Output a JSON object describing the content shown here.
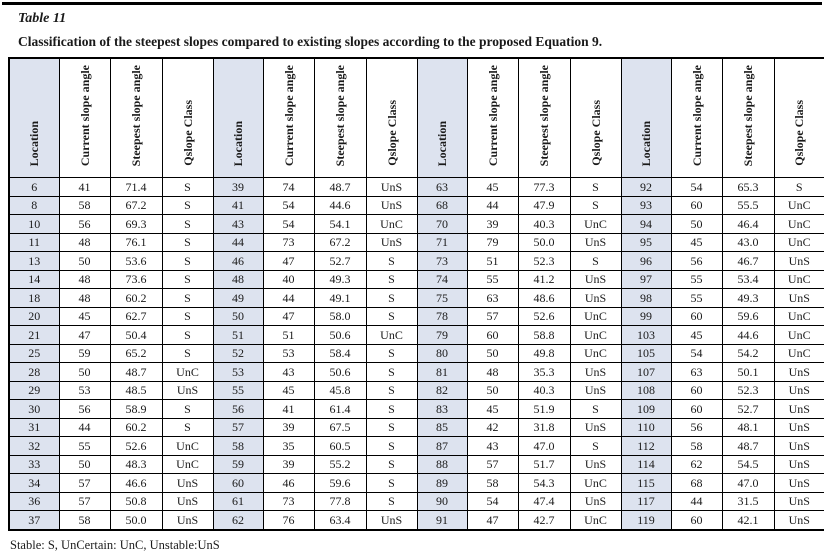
{
  "title": "Table 11",
  "subtitle": "Classification of the steepest slopes compared to existing slopes according to the proposed Equation 9.",
  "footnote": "Stable: S, UnCertain: UnC, Unstable:UnS",
  "headers": [
    "Location",
    "Current slope angle",
    "Steepest slope angle",
    "Qslope Class"
  ],
  "colors": {
    "location_column_bg": "#dde3ef",
    "border": "#000000",
    "text": "#1a1a1a"
  },
  "groups": [
    {
      "rows": [
        [
          "6",
          "41",
          "71.4",
          "S"
        ],
        [
          "8",
          "58",
          "67.2",
          "S"
        ],
        [
          "10",
          "56",
          "69.3",
          "S"
        ],
        [
          "11",
          "48",
          "76.1",
          "S"
        ],
        [
          "13",
          "50",
          "53.6",
          "S"
        ],
        [
          "14",
          "48",
          "73.6",
          "S"
        ],
        [
          "18",
          "48",
          "60.2",
          "S"
        ],
        [
          "20",
          "45",
          "62.7",
          "S"
        ],
        [
          "21",
          "47",
          "50.4",
          "S"
        ],
        [
          "25",
          "59",
          "65.2",
          "S"
        ],
        [
          "28",
          "50",
          "48.7",
          "UnC"
        ],
        [
          "29",
          "53",
          "48.5",
          "UnS"
        ],
        [
          "30",
          "56",
          "58.9",
          "S"
        ],
        [
          "31",
          "44",
          "60.2",
          "S"
        ],
        [
          "32",
          "55",
          "52.6",
          "UnC"
        ],
        [
          "33",
          "50",
          "48.3",
          "UnC"
        ],
        [
          "34",
          "57",
          "46.6",
          "UnS"
        ],
        [
          "36",
          "57",
          "50.8",
          "UnS"
        ],
        [
          "37",
          "58",
          "50.0",
          "UnS"
        ]
      ]
    },
    {
      "rows": [
        [
          "39",
          "74",
          "48.7",
          "UnS"
        ],
        [
          "41",
          "54",
          "44.6",
          "UnS"
        ],
        [
          "43",
          "54",
          "54.1",
          "UnC"
        ],
        [
          "44",
          "73",
          "67.2",
          "UnS"
        ],
        [
          "46",
          "47",
          "52.7",
          "S"
        ],
        [
          "48",
          "40",
          "49.3",
          "S"
        ],
        [
          "49",
          "44",
          "49.1",
          "S"
        ],
        [
          "50",
          "47",
          "58.0",
          "S"
        ],
        [
          "51",
          "51",
          "50.6",
          "UnC"
        ],
        [
          "52",
          "53",
          "58.4",
          "S"
        ],
        [
          "53",
          "43",
          "50.6",
          "S"
        ],
        [
          "55",
          "45",
          "45.8",
          "S"
        ],
        [
          "56",
          "41",
          "61.4",
          "S"
        ],
        [
          "57",
          "39",
          "67.5",
          "S"
        ],
        [
          "58",
          "35",
          "60.5",
          "S"
        ],
        [
          "59",
          "39",
          "55.2",
          "S"
        ],
        [
          "60",
          "46",
          "59.6",
          "S"
        ],
        [
          "61",
          "73",
          "77.8",
          "S"
        ],
        [
          "62",
          "76",
          "63.4",
          "UnS"
        ]
      ]
    },
    {
      "rows": [
        [
          "63",
          "45",
          "77.3",
          "S"
        ],
        [
          "68",
          "44",
          "47.9",
          "S"
        ],
        [
          "70",
          "39",
          "40.3",
          "UnC"
        ],
        [
          "71",
          "79",
          "50.0",
          "UnS"
        ],
        [
          "73",
          "51",
          "52.3",
          "S"
        ],
        [
          "74",
          "55",
          "41.2",
          "UnS"
        ],
        [
          "75",
          "63",
          "48.6",
          "UnS"
        ],
        [
          "78",
          "57",
          "52.6",
          "UnC"
        ],
        [
          "79",
          "60",
          "58.8",
          "UnC"
        ],
        [
          "80",
          "50",
          "49.8",
          "UnC"
        ],
        [
          "81",
          "48",
          "35.3",
          "UnS"
        ],
        [
          "82",
          "50",
          "40.3",
          "UnS"
        ],
        [
          "83",
          "45",
          "51.9",
          "S"
        ],
        [
          "85",
          "42",
          "31.8",
          "UnS"
        ],
        [
          "87",
          "43",
          "47.0",
          "S"
        ],
        [
          "88",
          "57",
          "51.7",
          "UnS"
        ],
        [
          "89",
          "58",
          "54.3",
          "UnC"
        ],
        [
          "90",
          "54",
          "47.4",
          "UnS"
        ],
        [
          "91",
          "47",
          "42.7",
          "UnC"
        ]
      ]
    },
    {
      "rows": [
        [
          "92",
          "54",
          "65.3",
          "S"
        ],
        [
          "93",
          "60",
          "55.5",
          "UnC"
        ],
        [
          "94",
          "50",
          "46.4",
          "UnC"
        ],
        [
          "95",
          "45",
          "43.0",
          "UnC"
        ],
        [
          "96",
          "56",
          "46.7",
          "UnS"
        ],
        [
          "97",
          "55",
          "53.4",
          "UnC"
        ],
        [
          "98",
          "55",
          "49.3",
          "UnS"
        ],
        [
          "99",
          "60",
          "59.6",
          "UnC"
        ],
        [
          "103",
          "45",
          "44.6",
          "UnC"
        ],
        [
          "105",
          "54",
          "54.2",
          "UnC"
        ],
        [
          "107",
          "63",
          "50.1",
          "UnS"
        ],
        [
          "108",
          "60",
          "52.3",
          "UnS"
        ],
        [
          "109",
          "60",
          "52.7",
          "UnS"
        ],
        [
          "110",
          "56",
          "48.1",
          "UnS"
        ],
        [
          "112",
          "58",
          "48.7",
          "UnS"
        ],
        [
          "114",
          "62",
          "54.5",
          "UnS"
        ],
        [
          "115",
          "68",
          "47.0",
          "UnS"
        ],
        [
          "117",
          "44",
          "31.5",
          "UnS"
        ],
        [
          "119",
          "60",
          "42.1",
          "UnS"
        ]
      ]
    }
  ]
}
